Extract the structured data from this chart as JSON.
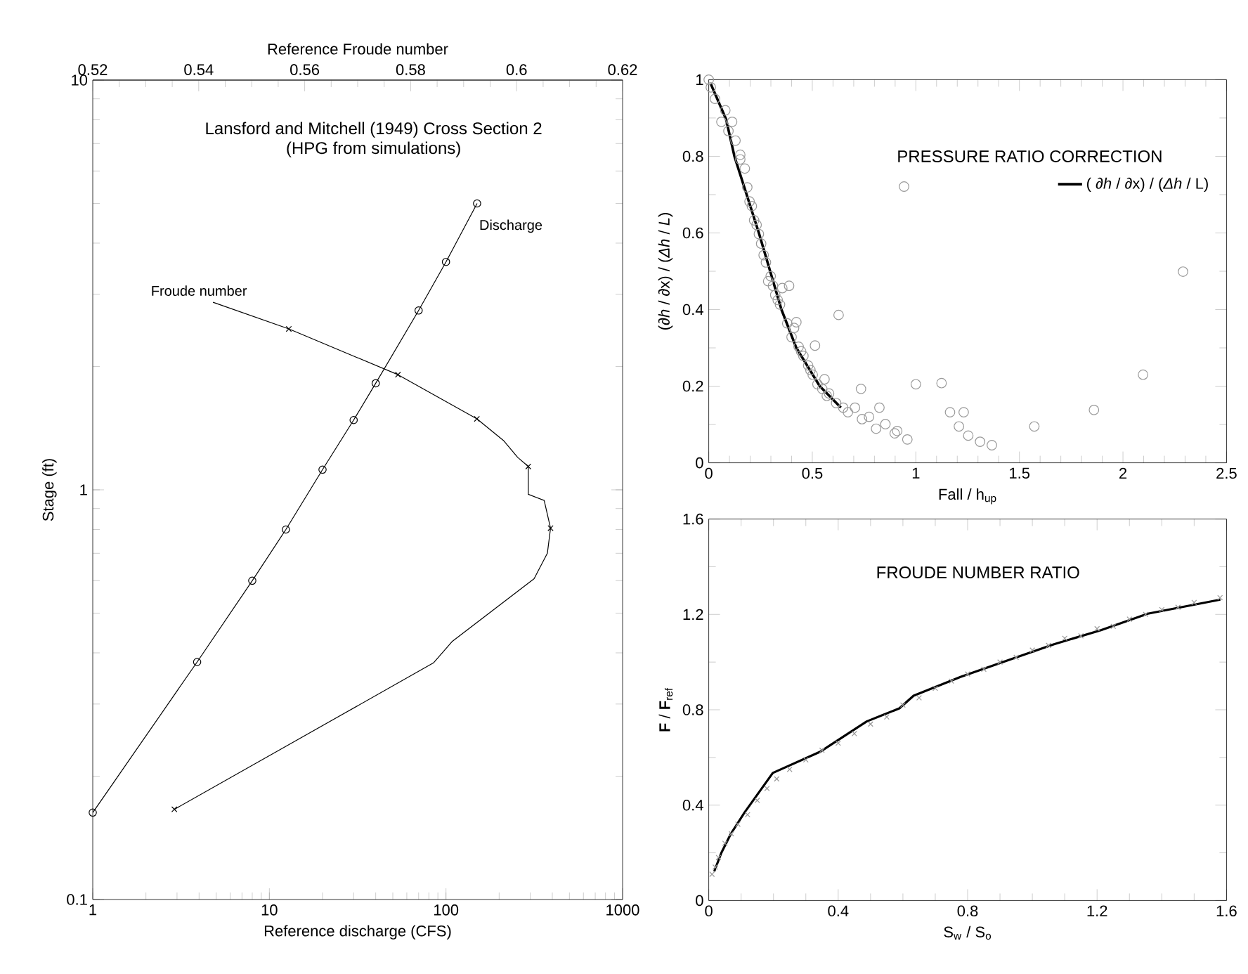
{
  "chart_data": [
    {
      "type": "line",
      "title": "Lansford and Mitchell (1949) Cross Section 2",
      "subtitle": "(HPG from simulations)",
      "xlabel": "Reference discharge (CFS)",
      "ylabel": "Stage (ft)",
      "x2label": "Reference Froude number",
      "log": "xy",
      "xlim": [
        1,
        1000
      ],
      "xticks": [
        1,
        10,
        100,
        1000
      ],
      "ylim": [
        0.1,
        10
      ],
      "yticks": [
        0.1,
        1,
        10
      ],
      "x2lim": [
        0.52,
        0.62
      ],
      "x2ticks": [
        0.52,
        0.54,
        0.56,
        0.58,
        0.6,
        0.62
      ],
      "legend": false,
      "series": [
        {
          "name": "Discharge",
          "marker": "circle",
          "color": "#000000",
          "x": [
            1,
            3.9,
            8,
            12.4,
            20,
            30,
            40,
            70,
            100,
            150
          ],
          "values": [
            0.163,
            0.38,
            0.6,
            0.8,
            1.12,
            1.48,
            1.82,
            2.74,
            3.6,
            5
          ]
        },
        {
          "name": "Froude number",
          "axis": "x2",
          "marker": "none",
          "color": "#000000",
          "x": [
            0.5427,
            0.557,
            0.5776,
            0.5925,
            0.5975,
            0.6002,
            0.6022,
            0.6022,
            0.6052,
            0.6064,
            0.6058,
            0.6033,
            0.5878,
            0.5843,
            0.5354
          ],
          "values": [
            2.87,
            2.47,
            1.91,
            1.49,
            1.32,
            1.2,
            1.14,
            0.975,
            0.942,
            0.806,
            0.7,
            0.607,
            0.426,
            0.378,
            0.166
          ]
        },
        {
          "type": "scatter",
          "axis": "x2",
          "marker": "cross",
          "color": "#000000",
          "x": [
            0.557,
            0.5776,
            0.5925,
            0.6022,
            0.6064,
            0.5354
          ],
          "values": [
            2.47,
            1.91,
            1.49,
            1.14,
            0.806,
            0.166
          ]
        }
      ]
    },
    {
      "type": "scatter",
      "title": "PRESSURE RATIO CORRECTION",
      "xlabel": "Fall / h$_{up}$",
      "ylabel": "(∂*h* / ∂x)  / (*Δh* / *L*)",
      "xlim": [
        0,
        2.5
      ],
      "xticks": [
        0,
        0.5,
        1,
        1.5,
        2,
        2.5
      ],
      "ylim": [
        0,
        1
      ],
      "yticks": [
        0,
        0.2,
        0.4,
        0.6,
        0.8,
        1
      ],
      "legend": "top right",
      "series": [
        {
          "marker": "circle",
          "color": "#999999",
          "x": [
            0,
            0.01,
            0.03,
            0.061,
            0.08,
            0.095,
            0.113,
            0.129,
            0.152,
            0.152,
            0.174,
            0.186,
            0.197,
            0.208,
            0.219,
            0.231,
            0.242,
            0.253,
            0.265,
            0.276,
            0.287,
            0.299,
            0.31,
            0.321,
            0.333,
            0.344,
            0.355,
            0.379,
            0.388,
            0.4,
            0.412,
            0.423,
            0.434,
            0.446,
            0.457,
            0.48,
            0.491,
            0.502,
            0.513,
            0.525,
            0.548,
            0.559,
            0.57,
            0.581,
            0.615,
            0.627,
            0.649,
            0.672,
            0.706,
            0.735,
            0.74,
            0.774,
            0.808,
            0.824,
            0.853,
            0.898,
            0.91,
            0.943,
            0.959,
            1.0,
            1.124,
            1.165,
            1.208,
            1.231,
            1.253,
            1.31,
            1.367,
            1.572,
            1.86,
            2.097,
            2.29
          ],
          "values": [
            1,
            0.98,
            0.95,
            0.89,
            0.92,
            0.866,
            0.89,
            0.841,
            0.804,
            0.792,
            0.768,
            0.719,
            0.682,
            0.67,
            0.633,
            0.621,
            0.597,
            0.572,
            0.542,
            0.523,
            0.474,
            0.487,
            0.462,
            0.438,
            0.425,
            0.413,
            0.456,
            0.364,
            0.462,
            0.328,
            0.352,
            0.367,
            0.303,
            0.291,
            0.279,
            0.254,
            0.242,
            0.23,
            0.306,
            0.205,
            0.193,
            0.218,
            0.175,
            0.181,
            0.156,
            0.386,
            0.144,
            0.132,
            0.144,
            0.193,
            0.114,
            0.12,
            0.089,
            0.144,
            0.101,
            0.077,
            0.083,
            0.721,
            0.061,
            0.205,
            0.208,
            0.132,
            0.095,
            0.132,
            0.071,
            0.055,
            0.046,
            0.095,
            0.138,
            0.23,
            0.499
          ]
        },
        {
          "name": "( ∂*h* / ∂x)  / (*Δh* / L)",
          "type": "line",
          "marker": "none",
          "color": "#000000",
          "x": [
            0.009,
            0.084,
            0.124,
            0.242,
            0.351,
            0.423,
            0.536,
            0.638
          ],
          "values": [
            0.99,
            0.896,
            0.8,
            0.6,
            0.4,
            0.3,
            0.2,
            0.144
          ]
        }
      ]
    },
    {
      "type": "scatter",
      "title": "FROUDE NUMBER RATIO",
      "xlabel": "S$_{w}$ / S$_{o}$",
      "ylabel": "**F** / **F**$_{ref}$",
      "xlim": [
        0,
        1.6
      ],
      "xticks": [
        0,
        0.4,
        0.8,
        1.2,
        1.6
      ],
      "ylim": [
        0,
        1.6
      ],
      "yticks": [
        0,
        0.4,
        0.8,
        1.2,
        1.6
      ],
      "series": [
        {
          "marker": "cross",
          "color": "#999999",
          "x": [
            0.01,
            0.02,
            0.03,
            0.05,
            0.07,
            0.09,
            0.12,
            0.15,
            0.18,
            0.21,
            0.25,
            0.3,
            0.35,
            0.4,
            0.45,
            0.5,
            0.55,
            0.6,
            0.65,
            0.7,
            0.75,
            0.8,
            0.85,
            0.9,
            0.95,
            1.0,
            1.05,
            1.1,
            1.15,
            1.2,
            1.25,
            1.3,
            1.35,
            1.4,
            1.45,
            1.5,
            1.58
          ],
          "values": [
            0.11,
            0.14,
            0.18,
            0.24,
            0.28,
            0.32,
            0.36,
            0.42,
            0.47,
            0.51,
            0.55,
            0.59,
            0.63,
            0.66,
            0.7,
            0.74,
            0.77,
            0.82,
            0.85,
            0.89,
            0.92,
            0.95,
            0.97,
            1.0,
            1.02,
            1.05,
            1.07,
            1.1,
            1.11,
            1.14,
            1.15,
            1.18,
            1.2,
            1.22,
            1.23,
            1.25,
            1.27
          ]
        },
        {
          "type": "line",
          "marker": "none",
          "color": "#000000",
          "x": [
            0.017,
            0.039,
            0.068,
            0.111,
            0.198,
            0.343,
            0.488,
            0.589,
            0.633,
            0.778,
            0.922,
            1.067,
            1.212,
            1.357,
            1.581
          ],
          "values": [
            0.122,
            0.2,
            0.279,
            0.37,
            0.535,
            0.623,
            0.751,
            0.806,
            0.859,
            0.938,
            1.006,
            1.075,
            1.134,
            1.203,
            1.262
          ]
        }
      ]
    }
  ]
}
